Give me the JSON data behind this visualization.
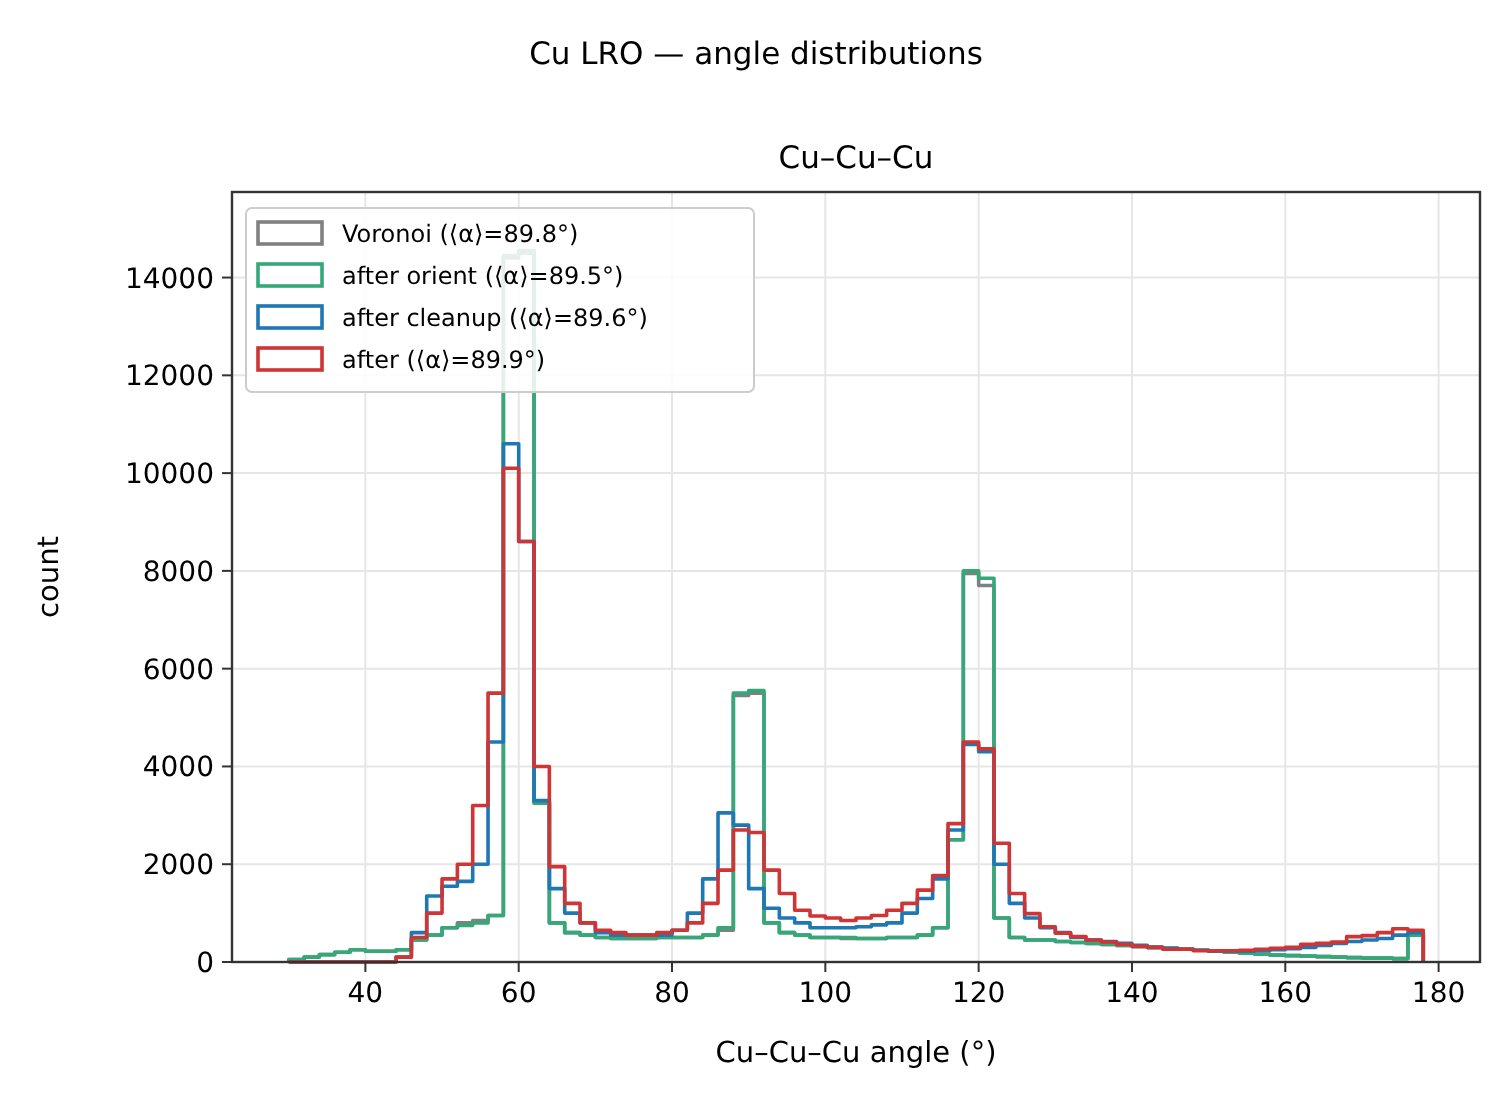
{
  "chart_data": {
    "type": "histogram",
    "title": "Cu–Cu–Cu",
    "subtitle": "Cu LRO — angle distributions",
    "xlabel": "Cu–Cu–Cu angle (°)",
    "ylabel": "count",
    "bins": [
      30,
      32,
      34,
      36,
      38,
      40,
      42,
      44,
      46,
      48,
      50,
      52,
      54,
      56,
      58,
      60,
      62,
      64,
      66,
      68,
      70,
      72,
      74,
      76,
      78,
      80,
      82,
      84,
      86,
      88,
      90,
      92,
      94,
      96,
      98,
      100,
      102,
      104,
      106,
      108,
      110,
      112,
      114,
      116,
      118,
      120,
      122,
      124,
      126,
      128,
      130,
      132,
      134,
      136,
      138,
      140,
      142,
      144,
      146,
      148,
      150,
      152,
      154,
      156,
      158,
      160,
      162,
      164,
      166,
      168,
      170,
      172,
      174,
      176,
      178
    ],
    "series": [
      {
        "name": "Voronoi (⟨α⟩=89.8°)",
        "color": "#808080",
        "values": [
          50,
          100,
          150,
          200,
          250,
          220,
          220,
          250,
          450,
          550,
          700,
          800,
          850,
          950,
          14400,
          14500,
          3250,
          800,
          600,
          550,
          500,
          480,
          480,
          480,
          500,
          500,
          500,
          550,
          650,
          5450,
          5500,
          800,
          600,
          550,
          500,
          500,
          480,
          480,
          480,
          500,
          500,
          550,
          700,
          2500,
          7950,
          7700,
          900,
          500,
          450,
          450,
          420,
          400,
          380,
          360,
          340,
          320,
          300,
          280,
          260,
          240,
          220,
          200,
          180,
          160,
          140,
          130,
          120,
          110,
          100,
          90,
          80,
          80,
          70,
          550
        ]
      },
      {
        "name": "after orient (⟨α⟩=89.5°)",
        "color": "#35a87a",
        "values": [
          50,
          100,
          150,
          200,
          250,
          220,
          220,
          250,
          450,
          550,
          700,
          750,
          800,
          950,
          14450,
          14550,
          3250,
          800,
          600,
          550,
          500,
          480,
          480,
          480,
          500,
          500,
          500,
          550,
          700,
          5500,
          5550,
          800,
          600,
          550,
          500,
          500,
          500,
          480,
          480,
          500,
          500,
          550,
          700,
          2500,
          8000,
          7850,
          900,
          500,
          450,
          450,
          420,
          400,
          380,
          360,
          340,
          320,
          300,
          280,
          260,
          240,
          220,
          200,
          180,
          160,
          140,
          130,
          120,
          110,
          100,
          90,
          80,
          80,
          70,
          550
        ]
      },
      {
        "name": "after cleanup (⟨α⟩=89.6°)",
        "color": "#1f77b4",
        "values": [
          0,
          0,
          0,
          0,
          0,
          0,
          0,
          100,
          600,
          1350,
          1550,
          1650,
          2000,
          4500,
          10600,
          8600,
          3300,
          1500,
          1000,
          800,
          600,
          550,
          550,
          550,
          550,
          650,
          1000,
          1700,
          3050,
          2800,
          1500,
          1100,
          900,
          800,
          700,
          700,
          700,
          720,
          760,
          800,
          1000,
          1300,
          1700,
          2700,
          4450,
          4300,
          2000,
          1200,
          900,
          700,
          600,
          500,
          450,
          420,
          380,
          340,
          300,
          280,
          260,
          240,
          220,
          220,
          220,
          230,
          250,
          270,
          300,
          340,
          380,
          420,
          450,
          480,
          550,
          600
        ]
      },
      {
        "name": "after (⟨α⟩=89.9°)",
        "color": "#d03535",
        "values": [
          0,
          0,
          0,
          0,
          0,
          0,
          0,
          100,
          500,
          1000,
          1700,
          2000,
          3200,
          5500,
          10100,
          8600,
          4000,
          1950,
          1200,
          800,
          650,
          600,
          550,
          550,
          600,
          650,
          800,
          1200,
          1880,
          2700,
          2650,
          1880,
          1400,
          1060,
          940,
          900,
          850,
          900,
          950,
          1060,
          1200,
          1470,
          1770,
          2830,
          4500,
          4360,
          2430,
          1400,
          990,
          720,
          590,
          520,
          450,
          410,
          360,
          320,
          300,
          260,
          260,
          230,
          230,
          230,
          240,
          260,
          280,
          300,
          360,
          380,
          410,
          520,
          540,
          600,
          680,
          650
        ]
      }
    ],
    "xlim": [
      22.6,
      185.4
    ],
    "ylim": [
      0,
      15750
    ],
    "xticks": [
      40,
      60,
      80,
      100,
      120,
      140,
      160,
      180
    ],
    "yticks": [
      0,
      2000,
      4000,
      6000,
      8000,
      10000,
      12000,
      14000
    ],
    "grid": true,
    "legend": "top left"
  }
}
